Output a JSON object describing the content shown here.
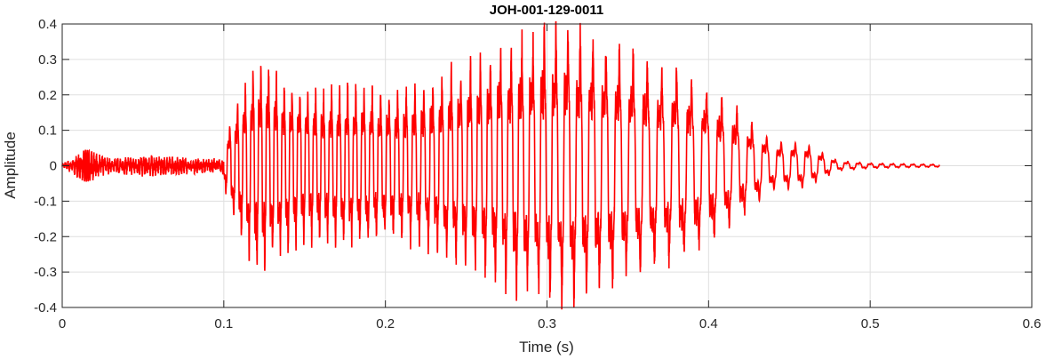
{
  "chart_data": {
    "type": "line",
    "title": "JOH-001-129-0011",
    "xlabel": "Time (s)",
    "ylabel": "Amplitude",
    "xlim": [
      0,
      0.6
    ],
    "ylim": [
      -0.4,
      0.4
    ],
    "xticks": [
      0,
      0.1,
      0.2,
      0.3,
      0.4,
      0.5,
      0.6
    ],
    "xtick_labels": [
      "0",
      "0.1",
      "0.2",
      "0.3",
      "0.4",
      "0.5",
      "0.6"
    ],
    "yticks": [
      -0.4,
      -0.3,
      -0.2,
      -0.1,
      0,
      0.1,
      0.2,
      0.3,
      0.4
    ],
    "ytick_labels": [
      "-0.4",
      "-0.3",
      "-0.2",
      "-0.1",
      "0",
      "0.1",
      "0.2",
      "0.3",
      "0.4"
    ],
    "grid": true,
    "series": [
      {
        "color": "#ff0000",
        "x_range": [
          0,
          0.543
        ],
        "description_points": {
          "x": [
            0.0,
            0.014,
            0.016,
            0.03,
            0.05,
            0.07,
            0.09,
            0.099,
            0.103,
            0.11,
            0.12,
            0.15,
            0.18,
            0.2,
            0.22,
            0.24,
            0.26,
            0.28,
            0.3,
            0.31,
            0.32,
            0.34,
            0.36,
            0.38,
            0.4,
            0.42,
            0.43,
            0.44,
            0.45,
            0.46,
            0.47,
            0.48,
            0.5,
            0.52,
            0.543
          ],
          "envelope": [
            0.004,
            0.045,
            0.045,
            0.02,
            0.03,
            0.025,
            0.02,
            0.02,
            0.12,
            0.2,
            0.3,
            0.21,
            0.23,
            0.21,
            0.22,
            0.27,
            0.31,
            0.36,
            0.38,
            0.4,
            0.38,
            0.34,
            0.3,
            0.27,
            0.22,
            0.15,
            0.11,
            0.07,
            0.07,
            0.065,
            0.04,
            0.015,
            0.008,
            0.006,
            0.004
          ]
        }
      }
    ]
  }
}
